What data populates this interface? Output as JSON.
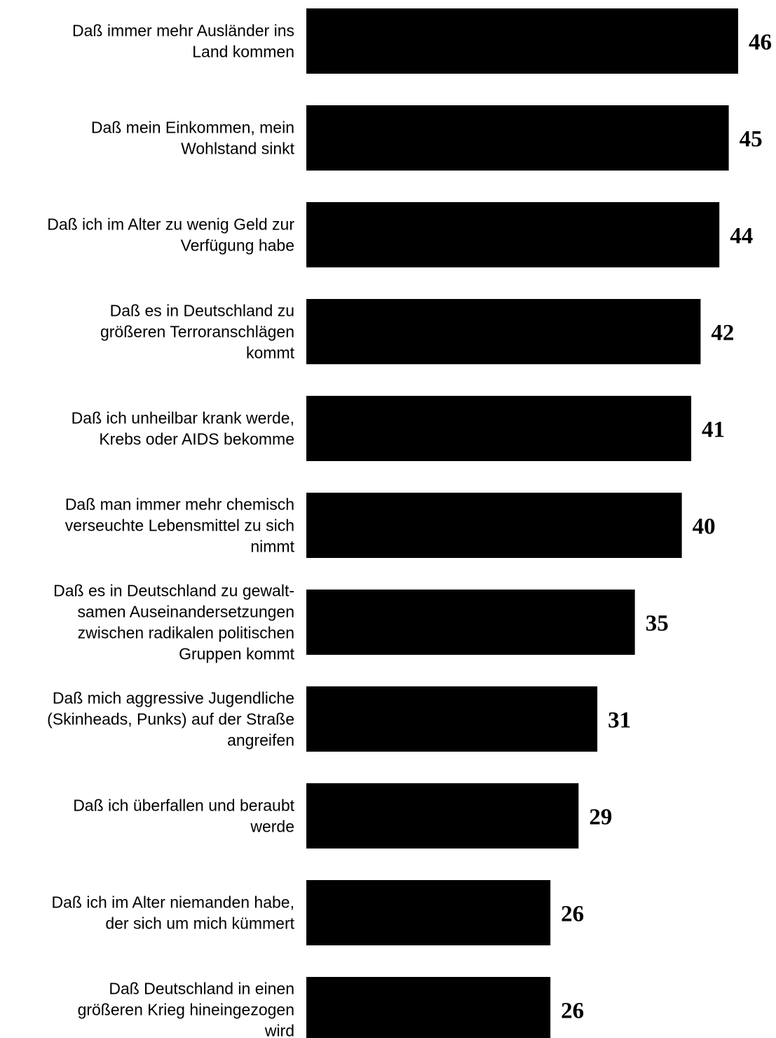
{
  "chart_data": {
    "type": "bar",
    "orientation": "horizontal",
    "title": "",
    "xlabel": "",
    "ylabel": "",
    "categories": [
      [
        "Daß immer mehr Ausländer ins",
        "Land kommen"
      ],
      [
        "Daß mein Einkommen, mein",
        "Wohlstand sinkt"
      ],
      [
        "Daß ich im Alter zu wenig Geld zur",
        "Verfügung habe"
      ],
      [
        "Daß es in Deutschland zu",
        "größeren Terroranschlägen",
        "kommt"
      ],
      [
        "Daß ich unheilbar krank werde,",
        "Krebs oder AIDS bekomme"
      ],
      [
        "Daß man immer mehr chemisch",
        "verseuchte Lebensmittel zu sich",
        "nimmt"
      ],
      [
        "Daß es in Deutschland zu gewalt-",
        "samen Auseinandersetzungen",
        "zwischen radikalen politischen",
        "Gruppen kommt"
      ],
      [
        "Daß mich aggressive Jugendliche",
        "(Skinheads, Punks) auf der Straße",
        "angreifen"
      ],
      [
        "Daß ich überfallen und beraubt",
        "werde"
      ],
      [
        "Daß ich im Alter niemanden habe,",
        "der sich um mich kümmert"
      ],
      [
        "Daß Deutschland in einen",
        "größeren Krieg hineingezogen",
        "wird"
      ]
    ],
    "values": [
      46,
      45,
      44,
      42,
      41,
      40,
      35,
      31,
      29,
      26,
      26
    ],
    "xlim": [
      0,
      46
    ],
    "grid": false,
    "legend": "none",
    "bar_color": "#000000"
  }
}
